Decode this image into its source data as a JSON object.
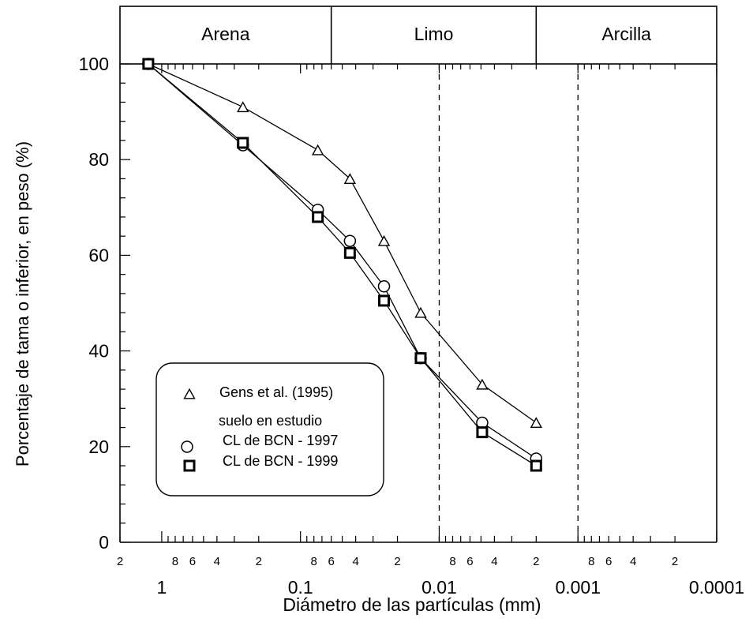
{
  "chart_data": {
    "type": "line",
    "xlabel": "Diámetro de las partículas  (mm)",
    "ylabel": "Porcentaje de tama o inferior, en peso (%)",
    "xscale": "log-reversed",
    "xlim": [
      2,
      0.0001
    ],
    "ylim": [
      0,
      100
    ],
    "x_major_ticks": [
      "1",
      "0.1",
      "0.01",
      "0.001",
      "0.0001"
    ],
    "y_ticks": [
      "0",
      "20",
      "40",
      "60",
      "80",
      "100"
    ],
    "x_minor_ticks": [
      {
        "value": 2,
        "label": "2"
      },
      {
        "value": 0.8,
        "label": "8"
      },
      {
        "value": 0.6,
        "label": "6"
      },
      {
        "value": 0.4,
        "label": "4"
      },
      {
        "value": 0.2,
        "label": "2"
      },
      {
        "value": 0.08,
        "label": "8"
      },
      {
        "value": 0.06,
        "label": "6"
      },
      {
        "value": 0.04,
        "label": "4"
      },
      {
        "value": 0.02,
        "label": "2"
      },
      {
        "value": 0.008,
        "label": "8"
      },
      {
        "value": 0.006,
        "label": "6"
      },
      {
        "value": 0.004,
        "label": "4"
      },
      {
        "value": 0.002,
        "label": "2"
      },
      {
        "value": 0.0008,
        "label": "8"
      },
      {
        "value": 0.0006,
        "label": "6"
      },
      {
        "value": 0.0004,
        "label": "4"
      },
      {
        "value": 0.0002,
        "label": "2"
      }
    ],
    "classification": {
      "boundaries": [
        0.06,
        0.002
      ],
      "zones": [
        {
          "label": "Arena",
          "from": 2,
          "to": 0.06
        },
        {
          "label": "Limo",
          "from": 0.06,
          "to": 0.002
        },
        {
          "label": "Arcilla",
          "from": 0.002,
          "to": 0.0001
        }
      ]
    },
    "reference_lines_x": [
      0.01,
      0.001
    ],
    "legend": {
      "placement": "lower-left",
      "subtitle": "suelo en estudio",
      "entries": [
        "Gens et al. (1995)",
        "CL de BCN - 1997",
        "CL de BCN - 1999"
      ]
    },
    "series": [
      {
        "name": "Gens et al. (1995)",
        "marker": "triangle",
        "x": [
          1.25,
          0.26,
          0.075,
          0.044,
          0.025,
          0.0136,
          0.0049,
          0.002
        ],
        "y": [
          100,
          91,
          82,
          76,
          63,
          48,
          33,
          25
        ]
      },
      {
        "name": "CL de BCN - 1997",
        "marker": "circle",
        "x": [
          1.25,
          0.26,
          0.075,
          0.044,
          0.025,
          0.0136,
          0.0049,
          0.002
        ],
        "y": [
          100,
          83,
          69.5,
          63,
          53.5,
          38.5,
          25,
          17.5
        ]
      },
      {
        "name": "CL de BCN - 1999",
        "marker": "square",
        "x": [
          1.25,
          0.26,
          0.075,
          0.044,
          0.025,
          0.0136,
          0.0049,
          0.002
        ],
        "y": [
          100,
          83.5,
          68,
          60.5,
          50.5,
          38.5,
          23,
          16
        ]
      }
    ]
  }
}
